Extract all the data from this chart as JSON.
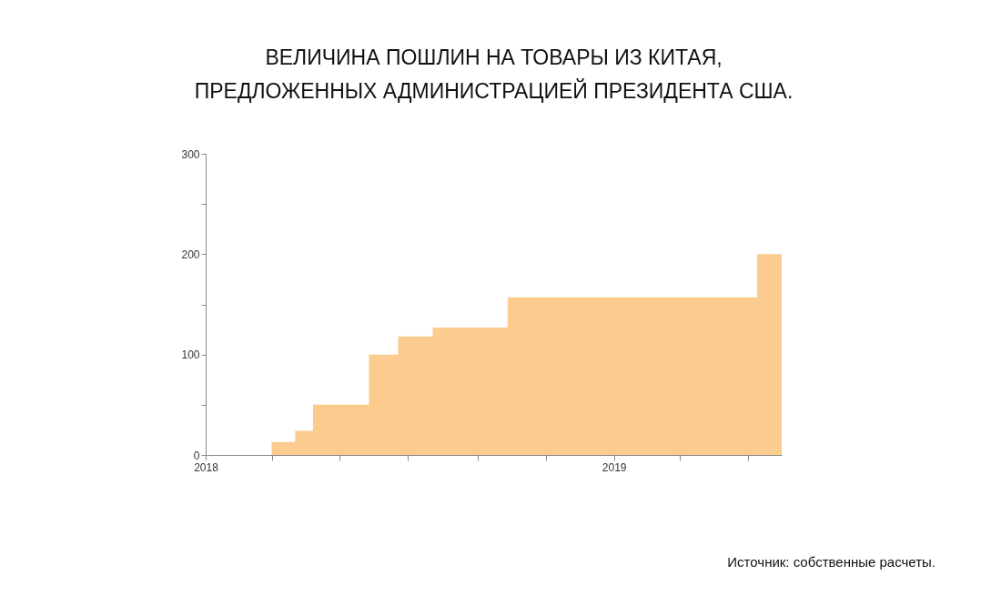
{
  "chart_data": {
    "type": "area",
    "title": "ВЕЛИЧИНА ПОШЛИН НА ТОВАРЫ ИЗ КИТАЯ,\nПРЕДЛОЖЕННЫХ АДМИНИСТРАЦИЕЙ ПРЕЗИДЕНТА США.",
    "x": [
      "2018-01-01",
      "2018-03-01",
      "2018-03-01",
      "2018-03-22",
      "2018-03-22",
      "2018-04-07",
      "2018-04-07",
      "2018-05-27",
      "2018-05-27",
      "2018-06-22",
      "2018-06-22",
      "2018-07-23",
      "2018-07-23",
      "2018-09-28",
      "2018-09-28",
      "2019-05-09",
      "2019-05-09",
      "2019-05-31"
    ],
    "series": [
      {
        "color": "#fbcc8e",
        "values": [
          0,
          0,
          13,
          13,
          24,
          24,
          50,
          50,
          100,
          100,
          118,
          118,
          127,
          127,
          157,
          157,
          200,
          200
        ]
      }
    ],
    "xlim": [
      "2018-01-01",
      "2019-05-31"
    ],
    "xticks": [
      {
        "value": "2018-01-01",
        "label": "2018"
      },
      {
        "value": "2018-03-01",
        "label": null
      },
      {
        "value": "2018-05-01",
        "label": null
      },
      {
        "value": "2018-07-01",
        "label": null
      },
      {
        "value": "2018-09-01",
        "label": null
      },
      {
        "value": "2018-11-01",
        "label": null
      },
      {
        "value": "2019-01-01",
        "label": "2019"
      },
      {
        "value": "2019-03-01",
        "label": null
      },
      {
        "value": "2019-05-01",
        "label": null
      }
    ],
    "ylim": [
      0,
      300
    ],
    "yticks": [
      0,
      {
        "value": 50,
        "label": null
      },
      100,
      {
        "value": 150,
        "label": null
      },
      200,
      {
        "value": 250,
        "label": null
      },
      300
    ],
    "grid": false,
    "annotations": [
      "Источник: собственные расчеты."
    ]
  }
}
